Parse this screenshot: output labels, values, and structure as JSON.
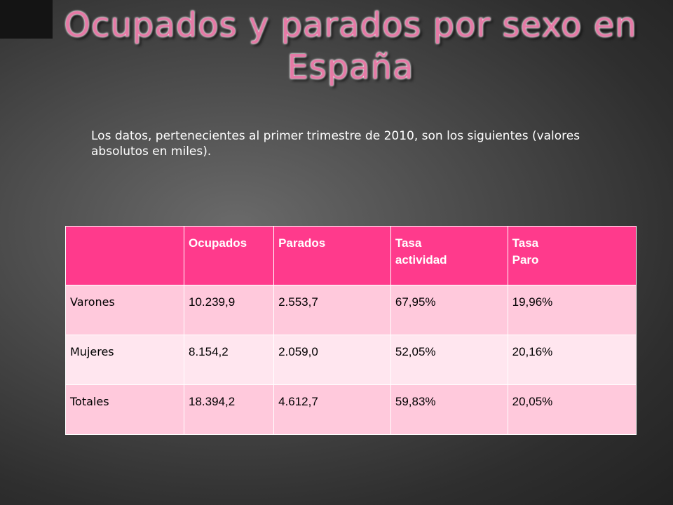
{
  "slide": {
    "title": "Ocupados y parados por sexo en España",
    "intro": "Los datos, pertenecientes al primer trimestre de 2010, son los siguientes (valores absolutos en miles)."
  },
  "table": {
    "headers": [
      "",
      "Ocupados",
      "Parados",
      "Tasa\nactividad",
      "Tasa\nParo"
    ],
    "rows": [
      [
        "Varones",
        "10.239,9",
        "2.553,7",
        "67,95%",
        "19,96%"
      ],
      [
        "Mujeres",
        "8.154,2",
        "2.059,0",
        "52,05%",
        "20,16%"
      ],
      [
        "Totales",
        "18.394,2",
        "4.612,7",
        "59,83%",
        "20,05%"
      ]
    ]
  },
  "colors": {
    "header_bg": "#ff3a8c",
    "row_odd_bg": "#ffc9dc",
    "row_even_bg": "#ffe6ef",
    "title_color": "#e57aa6"
  }
}
